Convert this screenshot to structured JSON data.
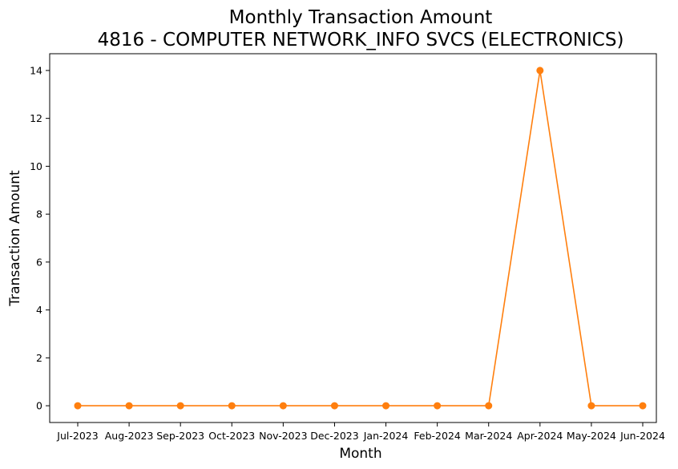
{
  "chart_data": {
    "type": "line",
    "title_line1": "Monthly Transaction Amount",
    "title_line2": "4816 - COMPUTER NETWORK_INFO SVCS (ELECTRONICS)",
    "xlabel": "Month",
    "ylabel": "Transaction Amount",
    "categories": [
      "Jul-2023",
      "Aug-2023",
      "Sep-2023",
      "Oct-2023",
      "Nov-2023",
      "Dec-2023",
      "Jan-2024",
      "Feb-2024",
      "Mar-2024",
      "Apr-2024",
      "May-2024",
      "Jun-2024"
    ],
    "series": [
      {
        "values": [
          0,
          0,
          0,
          0,
          0,
          0,
          0,
          0,
          0,
          14,
          0,
          0
        ],
        "color": "#ff7f0e",
        "marker": "circle"
      }
    ],
    "yticks": [
      0,
      2,
      4,
      6,
      8,
      10,
      12,
      14
    ],
    "ylim": [
      -0.7,
      14.7
    ],
    "grid": false,
    "legend": false
  }
}
